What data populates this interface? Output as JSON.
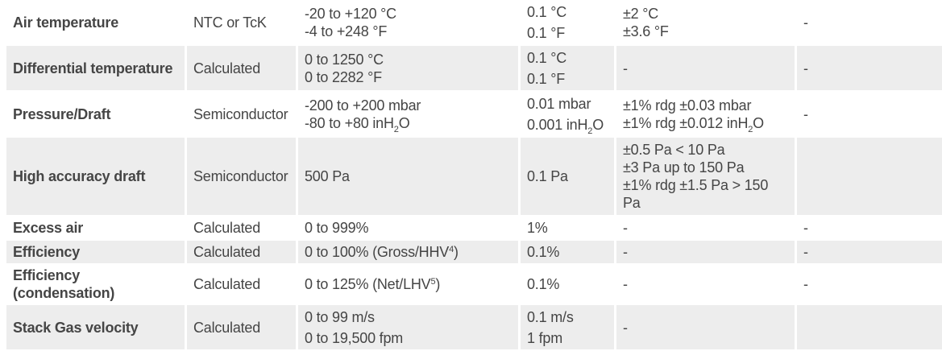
{
  "rows": [
    {
      "name": "Air temperature",
      "sensor": "NTC or TcK",
      "range": [
        "-20 to +120 °C",
        "-4 to +248 °F"
      ],
      "resolution": [
        "0.1 °C",
        "0.1 °F"
      ],
      "accuracy": [
        "±2 °C",
        "±3.6 °F"
      ],
      "extra": "-"
    },
    {
      "name": "Differential temperature",
      "sensor": "Calculated",
      "range": [
        "0 to 1250 °C",
        "0 to 2282 °F"
      ],
      "resolution": [
        "0.1 °C",
        "0.1 °F"
      ],
      "accuracy": [
        "-"
      ],
      "extra": "-"
    },
    {
      "name": "Pressure/Draft",
      "sensor": "Semiconductor",
      "range": [
        "-200 to +200 mbar",
        "-80 to +80 inH"
      ],
      "range_sub": "2",
      "range_tail": "O",
      "resolution": [
        "0.01 mbar",
        "0.001 inH"
      ],
      "resolution_sub": "2",
      "resolution_tail": "O",
      "accuracy": [
        "±1% rdg ±0.03 mbar",
        "±1% rdg ±0.012 inH"
      ],
      "accuracy_sub": "2",
      "accuracy_tail": "O",
      "extra": "-"
    },
    {
      "name": "High accuracy draft",
      "sensor": "Semiconductor",
      "range": [
        "500 Pa"
      ],
      "resolution": [
        "0.1 Pa"
      ],
      "accuracy": [
        "±0.5 Pa < 10 Pa",
        "±3 Pa up to 150 Pa",
        "±1% rdg ±1.5 Pa > 150 Pa"
      ],
      "extra": ""
    },
    {
      "name": "Excess air",
      "sensor": "Calculated",
      "range": [
        "0 to 999%"
      ],
      "resolution": [
        "1%"
      ],
      "accuracy": [
        "-"
      ],
      "extra": "-"
    },
    {
      "name": "Efficiency",
      "sensor": "Calculated",
      "range": [
        "0 to 100% (Gross/HHV"
      ],
      "range_sup": "4",
      "range_tail": ")",
      "resolution": [
        "0.1%"
      ],
      "accuracy": [
        "-"
      ],
      "extra": "-"
    },
    {
      "name": "Efficiency (condensation)",
      "sensor": "Calculated",
      "range": [
        "0 to 125% (Net/LHV"
      ],
      "range_sup": "5",
      "range_tail": ")",
      "resolution": [
        "0.1%"
      ],
      "accuracy": [
        "-"
      ],
      "extra": "-"
    },
    {
      "name": "Stack Gas velocity",
      "sensor": "Calculated",
      "range": [
        "0 to 99 m/s",
        "0 to 19,500 fpm"
      ],
      "resolution": [
        "0.1 m/s",
        "1 fpm"
      ],
      "accuracy": [
        "-"
      ],
      "extra": ""
    }
  ]
}
